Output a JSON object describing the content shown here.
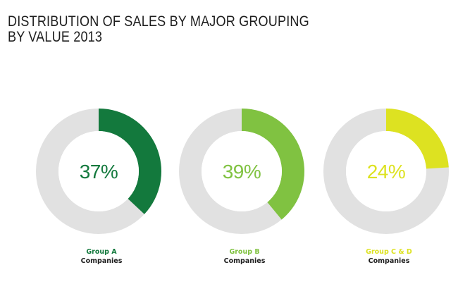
{
  "title": {
    "line1": "DISTRIBUTION OF SALES BY MAJOR GROUPING",
    "line2": "BY VALUE 2013"
  },
  "colors": {
    "track": "#e1e1e1",
    "center": "#ffffff",
    "text_dark": "#1e1e1e"
  },
  "chart_data": {
    "type": "pie",
    "title": "DISTRIBUTION OF SALES BY MAJOR GROUPING BY VALUE 2013",
    "unit": "%",
    "slices": [
      {
        "label": "Group A",
        "sublabel": "Companies",
        "value": 37,
        "display": "37%",
        "color": "#13793d"
      },
      {
        "label": "Group B",
        "sublabel": "Companies",
        "value": 39,
        "display": "39%",
        "color": "#80c241"
      },
      {
        "label": "Group C & D",
        "sublabel": "Companies",
        "value": 24,
        "display": "24%",
        "color": "#dde221"
      }
    ]
  }
}
